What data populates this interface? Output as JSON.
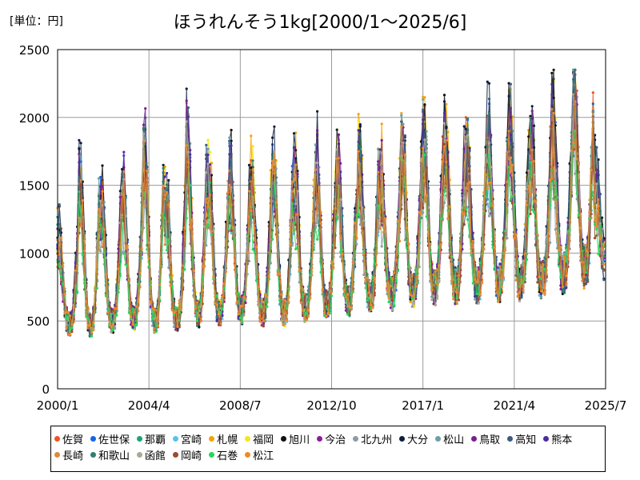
{
  "header": {
    "unit": "[単位：円]",
    "title": "ほうれんそう1kg[2000/1～2025/6]"
  },
  "chart_data": {
    "type": "line",
    "title": "ほうれんそう1kg[2000/1～2025/6]",
    "unit": "[単位：円]",
    "xlabel": "",
    "ylabel": "",
    "x_start": "2000/1",
    "x_end": "2025/7",
    "x_ticks": [
      "2000/1",
      "2004/4",
      "2008/7",
      "2012/10",
      "2017/1",
      "2021/4",
      "2025/7"
    ],
    "y_ticks": [
      0,
      500,
      1000,
      1500,
      2000,
      2500
    ],
    "ylim": [
      0,
      2500
    ],
    "grid": true,
    "legend_position": "bottom",
    "series": [
      {
        "name": "佐賀",
        "color": "#f4511e"
      },
      {
        "name": "佐世保",
        "color": "#1565e8"
      },
      {
        "name": "那覇",
        "color": "#1aa37a"
      },
      {
        "name": "宮崎",
        "color": "#5bc0ee"
      },
      {
        "name": "札幌",
        "color": "#f2a20c"
      },
      {
        "name": "福岡",
        "color": "#f5e61b"
      },
      {
        "name": "旭川",
        "color": "#111111"
      },
      {
        "name": "今治",
        "color": "#8e1a9e"
      },
      {
        "name": "北九州",
        "color": "#8d9ba6"
      },
      {
        "name": "大分",
        "color": "#0e1f3d"
      },
      {
        "name": "松山",
        "color": "#6aa0a8"
      },
      {
        "name": "鳥取",
        "color": "#7a1f8f"
      },
      {
        "name": "高知",
        "color": "#3d5a80"
      },
      {
        "name": "熊本",
        "color": "#4a2e9a"
      },
      {
        "name": "長崎",
        "color": "#e0883a"
      },
      {
        "name": "和歌山",
        "color": "#2f7f6e"
      },
      {
        "name": "函館",
        "color": "#a9a996"
      },
      {
        "name": "岡崎",
        "color": "#9c4a30"
      },
      {
        "name": "石巻",
        "color": "#28d65a"
      },
      {
        "name": "松江",
        "color": "#ef8a28"
      }
    ],
    "annual_profile": {
      "years": [
        2000,
        2001,
        2002,
        2003,
        2004,
        2005,
        2006,
        2007,
        2008,
        2009,
        2010,
        2011,
        2012,
        2013,
        2014,
        2015,
        2016,
        2017,
        2018,
        2019,
        2020,
        2021,
        2022,
        2023,
        2024,
        2025
      ],
      "winter_peak": [
        1100,
        1450,
        1300,
        1400,
        1650,
        1350,
        1700,
        1500,
        1500,
        1450,
        1550,
        1450,
        1550,
        1550,
        1600,
        1500,
        1700,
        1750,
        1700,
        1700,
        1750,
        1800,
        1700,
        1850,
        2050,
        1450
      ],
      "summer_low": [
        480,
        470,
        500,
        520,
        500,
        520,
        550,
        560,
        580,
        560,
        560,
        600,
        620,
        650,
        680,
        700,
        720,
        740,
        760,
        760,
        780,
        780,
        800,
        850,
        900,
        950
      ]
    }
  }
}
